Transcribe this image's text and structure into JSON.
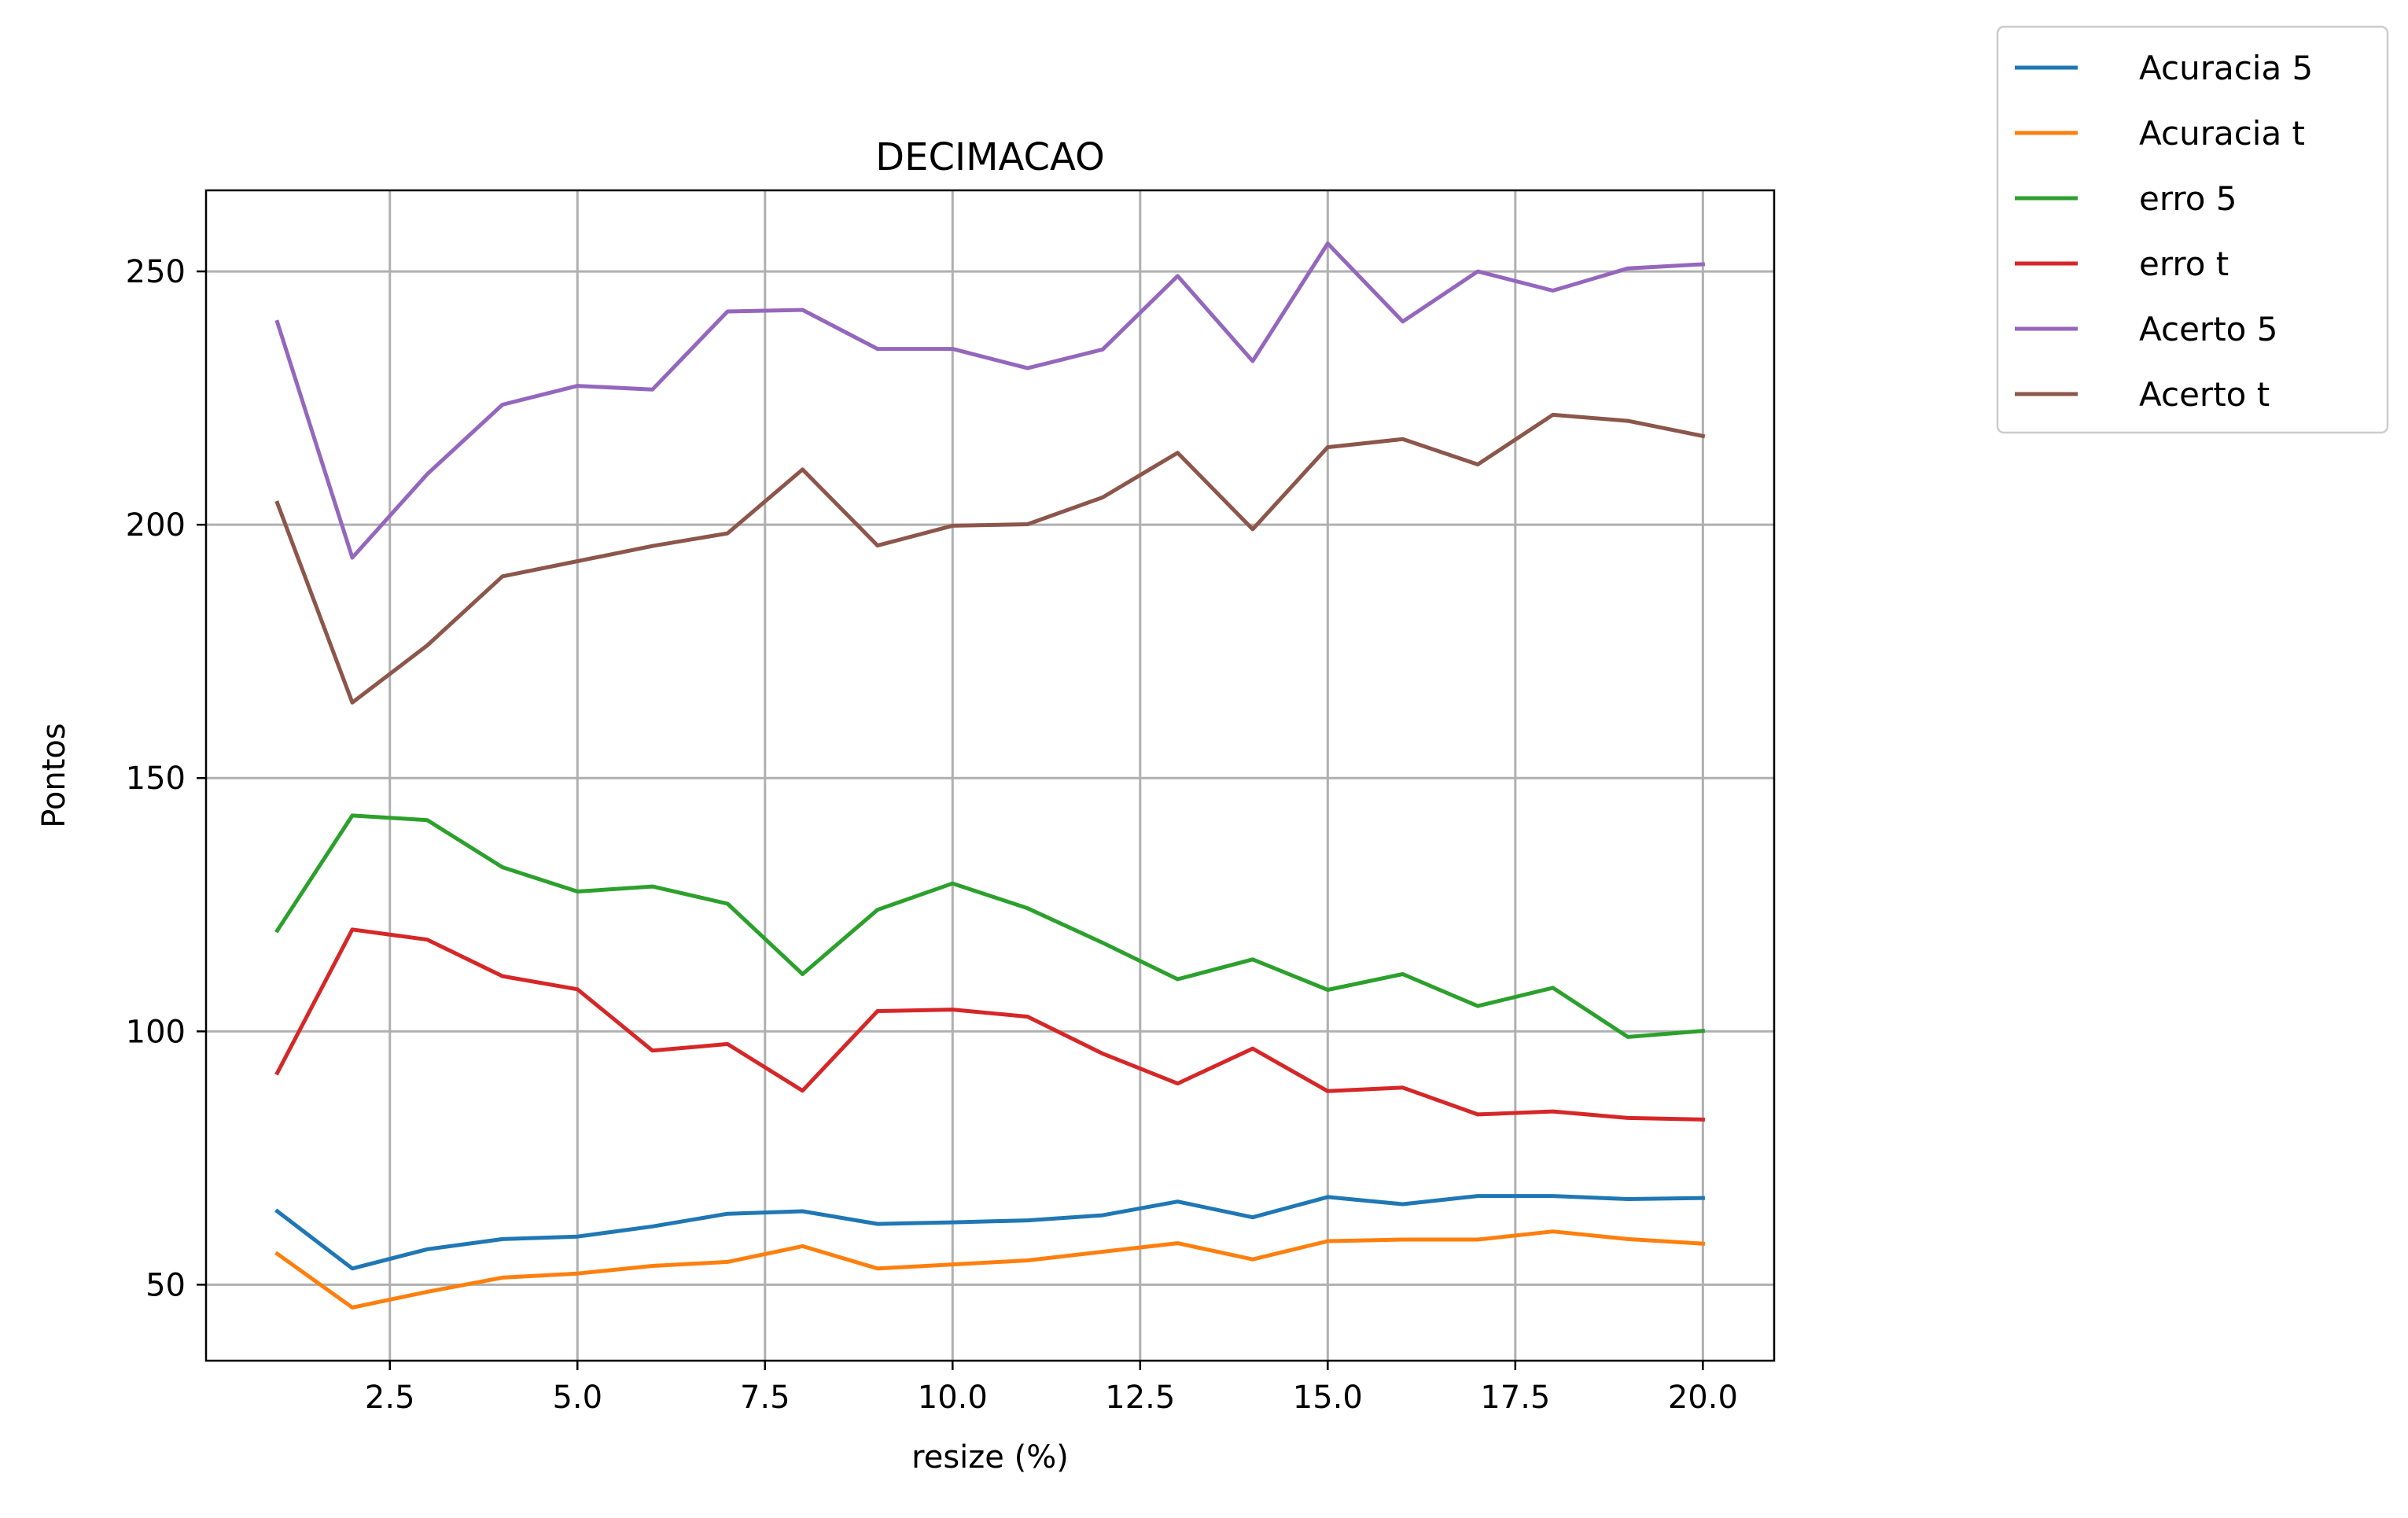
{
  "chart_data": {
    "type": "line",
    "title": "DECIMACAO",
    "xlabel": "resize (%)",
    "ylabel": "Pontos",
    "xlim": [
      0.05,
      20.95
    ],
    "ylim": [
      35,
      266
    ],
    "xticks": [
      2.5,
      5.0,
      7.5,
      10.0,
      12.5,
      15.0,
      17.5,
      20.0
    ],
    "xtick_labels": [
      "2.5",
      "5.0",
      "7.5",
      "10.0",
      "12.5",
      "15.0",
      "17.5",
      "20.0"
    ],
    "yticks": [
      50,
      100,
      150,
      200,
      250
    ],
    "ytick_labels": [
      "50",
      "100",
      "150",
      "200",
      "250"
    ],
    "grid": true,
    "legend_position": "outside-top-right",
    "x": [
      1,
      2,
      3,
      4,
      5,
      6,
      7,
      8,
      9,
      10,
      11,
      12,
      13,
      14,
      15,
      16,
      17,
      18,
      19,
      20
    ],
    "series": [
      {
        "name": "Acuracia 5",
        "color": "#1f77b4",
        "values": [
          64.5,
          53.2,
          57.0,
          59.0,
          59.5,
          61.5,
          64.0,
          64.5,
          62.0,
          62.3,
          62.7,
          63.7,
          66.4,
          63.3,
          67.3,
          65.9,
          67.5,
          67.5,
          66.9,
          67.1
        ]
      },
      {
        "name": "Acuracia t",
        "color": "#ff7f0e",
        "values": [
          56.1,
          45.5,
          48.6,
          51.4,
          52.2,
          53.7,
          54.5,
          57.6,
          53.2,
          54.0,
          54.8,
          56.5,
          58.2,
          55.0,
          58.6,
          58.9,
          58.9,
          60.5,
          59.0,
          58.1
        ]
      },
      {
        "name": "erro 5",
        "color": "#2ca02c",
        "values": [
          119.9,
          142.6,
          141.7,
          132.4,
          127.6,
          128.6,
          125.2,
          111.3,
          124.0,
          129.2,
          124.3,
          117.5,
          110.3,
          114.2,
          108.2,
          111.3,
          105.0,
          108.6,
          98.9,
          100.1
        ]
      },
      {
        "name": "erro t",
        "color": "#d62728",
        "values": [
          91.8,
          120.1,
          118.1,
          110.9,
          108.3,
          96.2,
          97.5,
          88.3,
          104.0,
          104.3,
          102.9,
          95.6,
          89.7,
          96.6,
          88.2,
          88.9,
          83.6,
          84.2,
          82.9,
          82.6
        ]
      },
      {
        "name": "Acerto 5",
        "color": "#9467bd",
        "values": [
          240.0,
          193.5,
          210.0,
          223.7,
          227.4,
          226.7,
          242.1,
          242.4,
          234.7,
          234.7,
          230.9,
          234.6,
          249.1,
          232.3,
          255.5,
          240.1,
          250.0,
          246.2,
          250.6,
          251.4
        ]
      },
      {
        "name": "Acerto t",
        "color": "#8c564b",
        "values": [
          204.3,
          164.9,
          176.2,
          189.8,
          192.8,
          195.8,
          198.3,
          210.9,
          195.9,
          199.8,
          200.1,
          205.4,
          214.2,
          199.1,
          215.3,
          216.9,
          211.9,
          221.7,
          220.5,
          217.5
        ]
      }
    ]
  }
}
